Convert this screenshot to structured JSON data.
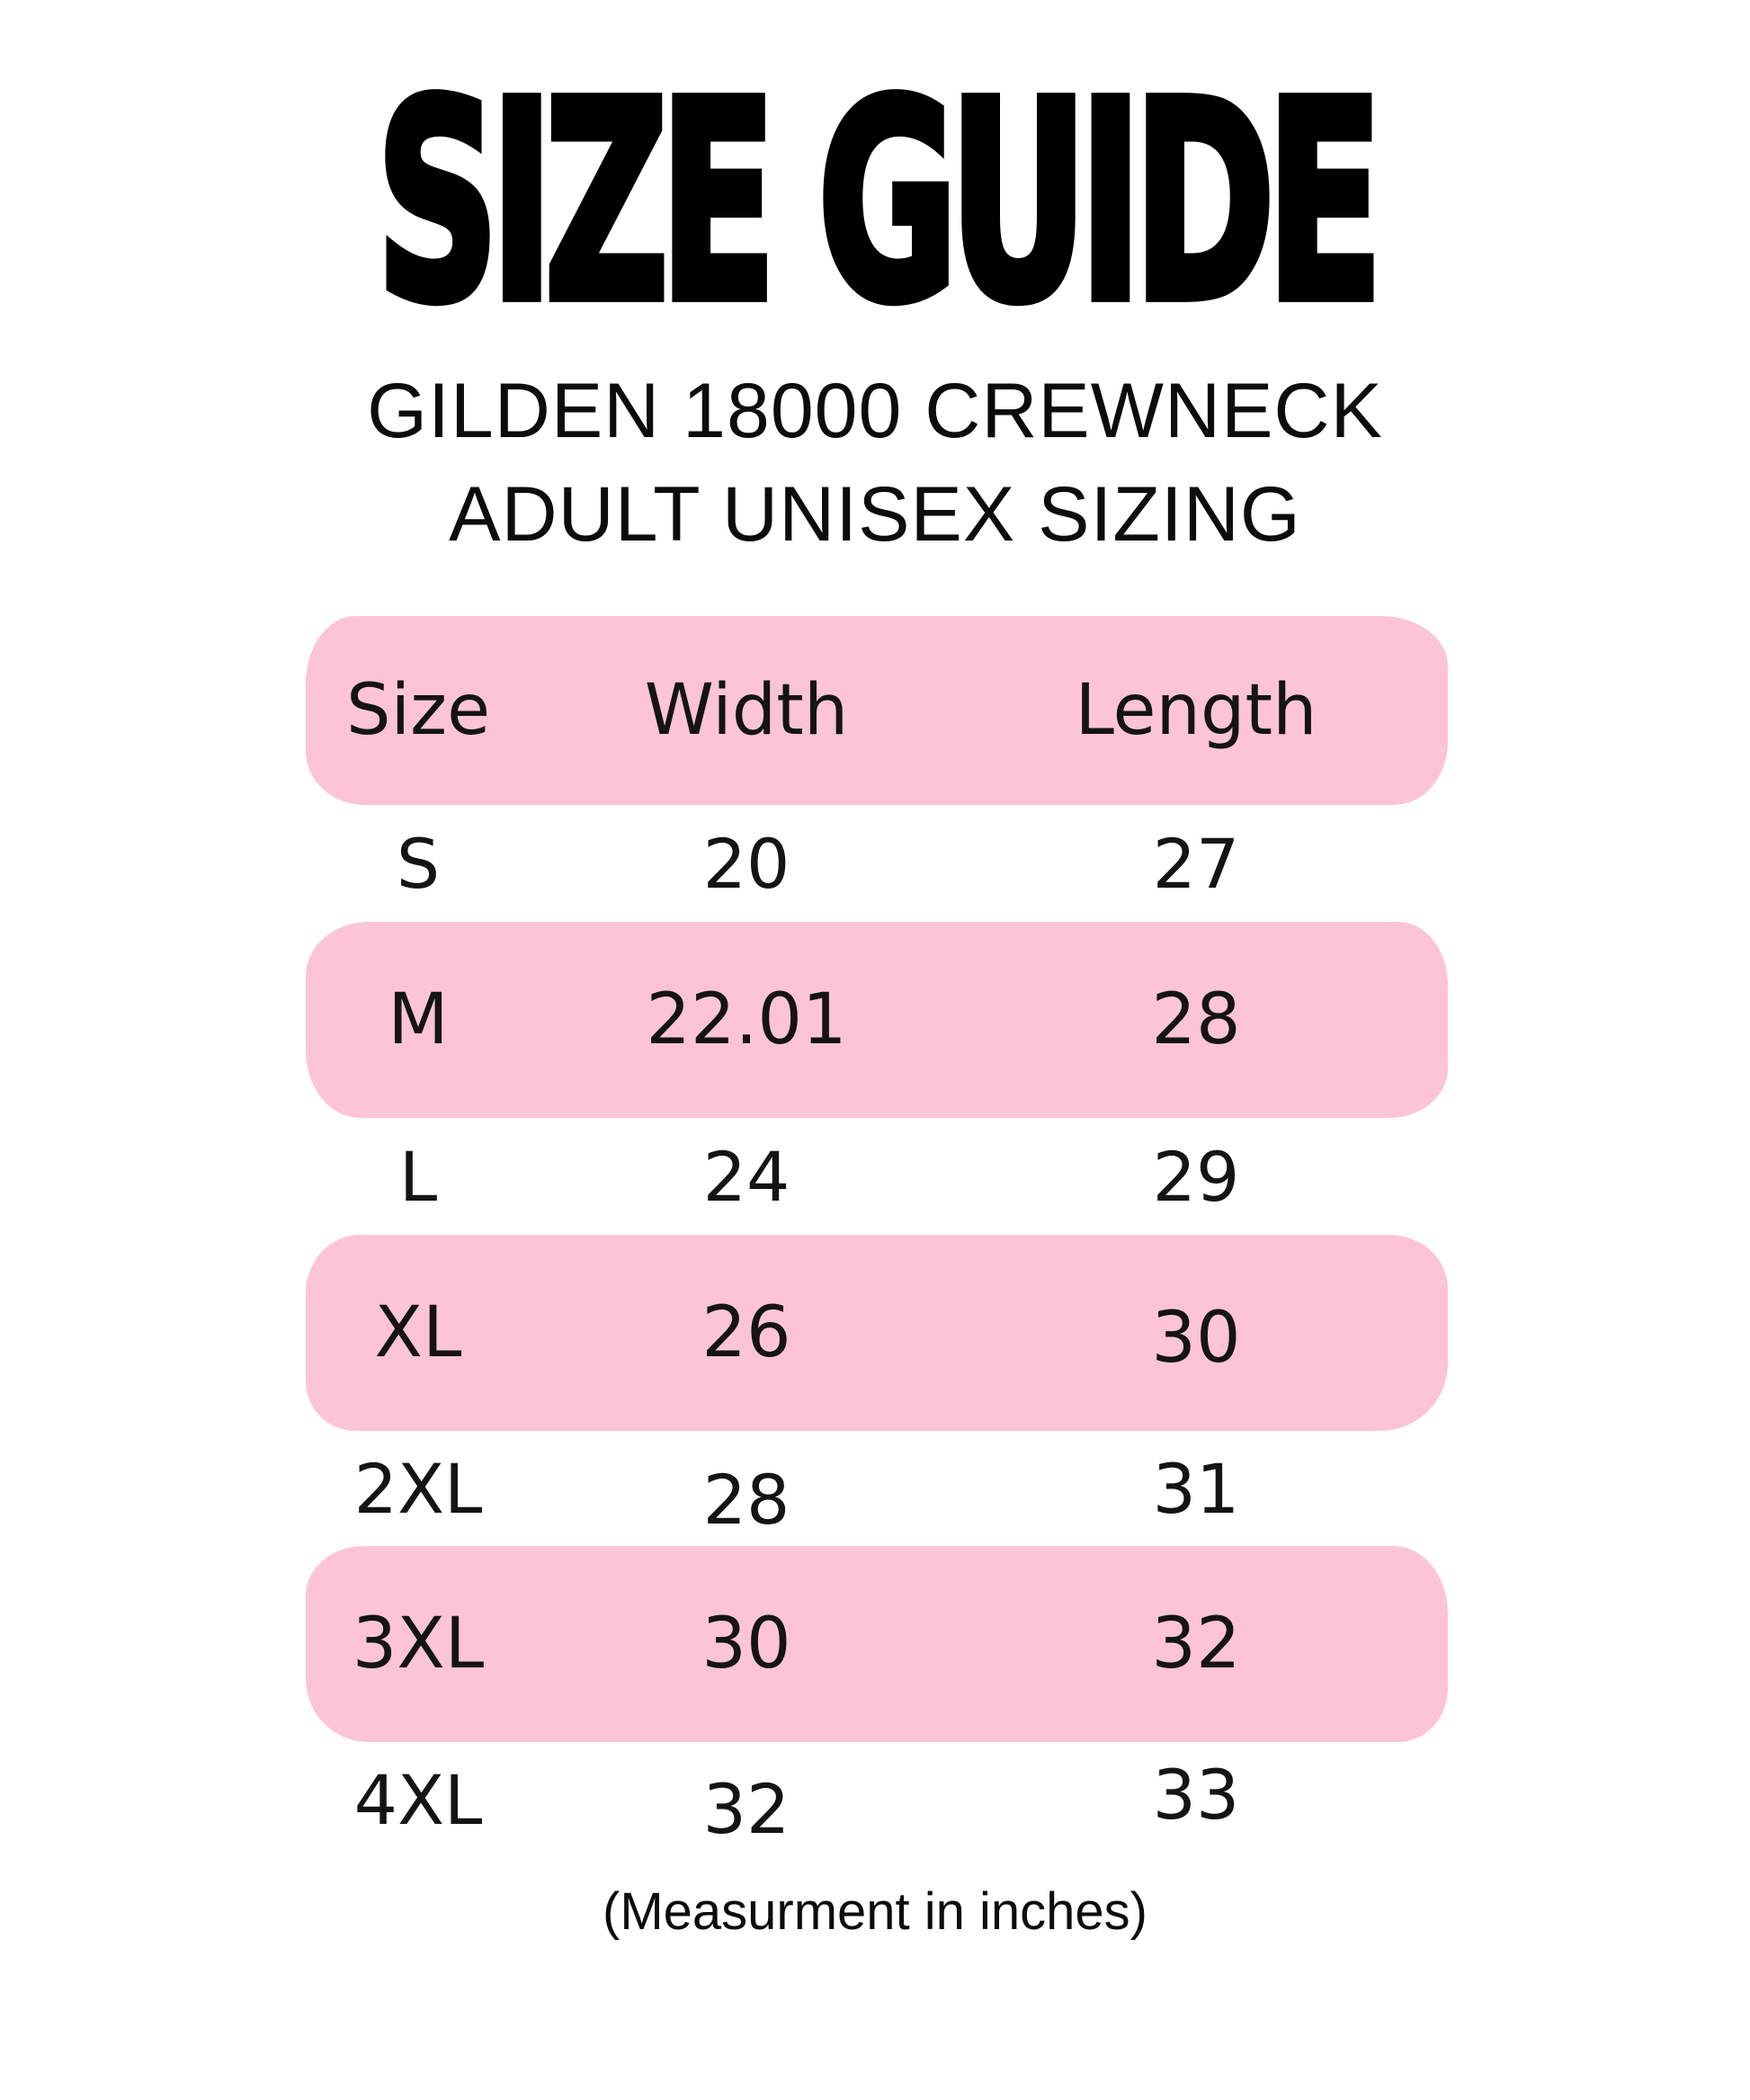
{
  "title": "SIZE GUIDE",
  "subtitle_line1": "GILDEN 18000 CREWNECK",
  "subtitle_line2": "ADULT UNISEX SIZING",
  "footer_note": "(Measurment in inches)",
  "colors": {
    "highlight_pink": "#FDC4D7",
    "text_black": "#111111",
    "background": "#FFFFFF"
  },
  "table": {
    "headers": [
      "Size",
      "Width",
      "Length"
    ],
    "rows": [
      {
        "size": "S",
        "width": "20",
        "length": "27",
        "highlighted": false
      },
      {
        "size": "M",
        "width": "22.01",
        "length": "28",
        "highlighted": true
      },
      {
        "size": "L",
        "width": "24",
        "length": "29",
        "highlighted": false
      },
      {
        "size": "XL",
        "width": "26",
        "length": "30",
        "highlighted": true
      },
      {
        "size": "2XL",
        "width": "28",
        "length": "31",
        "highlighted": false
      },
      {
        "size": "3XL",
        "width": "30",
        "length": "32",
        "highlighted": true
      },
      {
        "size": "4XL",
        "width": "32",
        "length": "33",
        "highlighted": false
      }
    ]
  },
  "chart_data": {
    "type": "table",
    "title": "SIZE GUIDE",
    "subtitle": "GILDEN 18000 CREWNECK ADULT UNISEX SIZING",
    "columns": [
      "Size",
      "Width",
      "Length"
    ],
    "rows": [
      [
        "S",
        20,
        27
      ],
      [
        "M",
        22.01,
        28
      ],
      [
        "L",
        24,
        29
      ],
      [
        "XL",
        26,
        30
      ],
      [
        "2XL",
        28,
        31
      ],
      [
        "3XL",
        30,
        32
      ],
      [
        "4XL",
        32,
        33
      ]
    ],
    "units": "inches",
    "note": "(Measurment in inches)",
    "highlighted_rows": [
      "header",
      "M",
      "XL",
      "3XL"
    ],
    "legend_position": "none",
    "grid": false
  }
}
